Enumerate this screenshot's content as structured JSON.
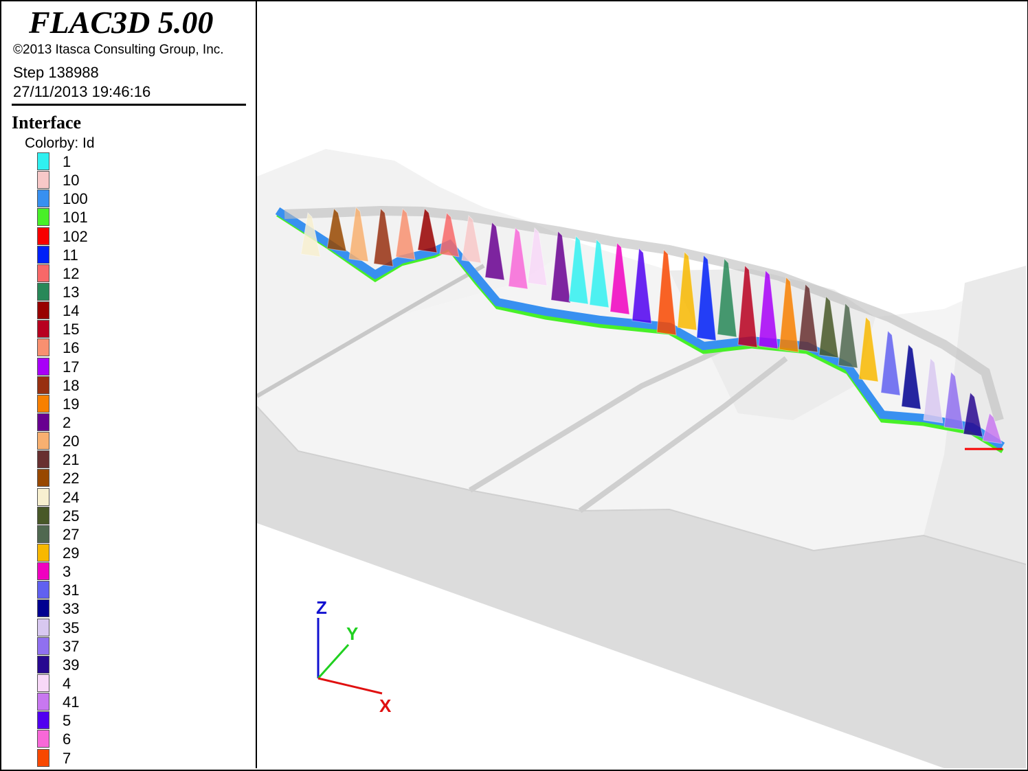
{
  "header": {
    "app_title": "FLAC3D 5.00",
    "copyright": "©2013 Itasca Consulting Group, Inc.",
    "step": "Step 138988",
    "datetime": "27/11/2013 19:46:16"
  },
  "legend": {
    "title": "Interface",
    "colorby": "Colorby: Id",
    "items": [
      {
        "label": "1",
        "color": "#30f0f0"
      },
      {
        "label": "10",
        "color": "#f8c8c8"
      },
      {
        "label": "100",
        "color": "#3890f0"
      },
      {
        "label": "101",
        "color": "#48f028"
      },
      {
        "label": "102",
        "color": "#f80000"
      },
      {
        "label": "11",
        "color": "#0020f8"
      },
      {
        "label": "12",
        "color": "#f86868"
      },
      {
        "label": "13",
        "color": "#288858"
      },
      {
        "label": "14",
        "color": "#980000"
      },
      {
        "label": "15",
        "color": "#b80020"
      },
      {
        "label": "16",
        "color": "#f89070"
      },
      {
        "label": "17",
        "color": "#a800f8"
      },
      {
        "label": "18",
        "color": "#983010"
      },
      {
        "label": "19",
        "color": "#f88000"
      },
      {
        "label": "2",
        "color": "#680090"
      },
      {
        "label": "20",
        "color": "#f8b070"
      },
      {
        "label": "21",
        "color": "#683030"
      },
      {
        "label": "22",
        "color": "#984800"
      },
      {
        "label": "24",
        "color": "#f8f0d0"
      },
      {
        "label": "25",
        "color": "#485828"
      },
      {
        "label": "27",
        "color": "#506850"
      },
      {
        "label": "29",
        "color": "#f8b800"
      },
      {
        "label": "3",
        "color": "#f000c0"
      },
      {
        "label": "31",
        "color": "#6060f0"
      },
      {
        "label": "33",
        "color": "#000090"
      },
      {
        "label": "35",
        "color": "#d8c8f0"
      },
      {
        "label": "37",
        "color": "#9070f0"
      },
      {
        "label": "39",
        "color": "#280890"
      },
      {
        "label": "4",
        "color": "#f8d8f8"
      },
      {
        "label": "41",
        "color": "#c878f0"
      },
      {
        "label": "5",
        "color": "#5000f0"
      },
      {
        "label": "6",
        "color": "#f868d8"
      },
      {
        "label": "7",
        "color": "#f84800"
      }
    ]
  },
  "axes": {
    "z_label": "Z",
    "y_label": "Y",
    "x_label": "X",
    "z_color": "#1010d0",
    "y_color": "#20d020",
    "x_color": "#e01010"
  }
}
